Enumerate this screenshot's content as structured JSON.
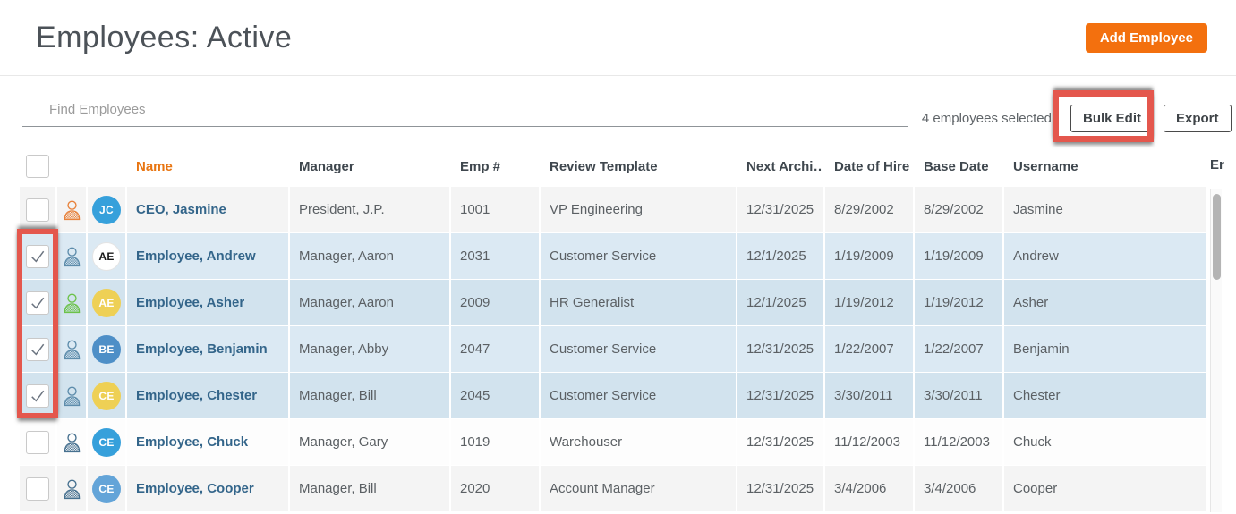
{
  "page": {
    "title": "Employees: Active"
  },
  "header": {
    "add_employee_label": "Add Employee"
  },
  "toolbar": {
    "search_placeholder": "Find Employees",
    "selected_text": "4 employees selected",
    "bulk_edit_label": "Bulk Edit",
    "export_label": "Export"
  },
  "table": {
    "columns": [
      "Name",
      "Manager",
      "Emp #",
      "Review Template",
      "Next Archi…",
      "Date of Hire",
      "Base Date",
      "Username",
      "Er"
    ],
    "sorted_column": "Name",
    "rows": [
      {
        "checked": false,
        "selected": false,
        "person_icon_color": "#e8823c",
        "avatar": {
          "initials": "JC",
          "bg": "#36a0db",
          "fg": "#ffffff"
        },
        "name": "CEO, Jasmine",
        "manager": "President, J.P.",
        "emp_no": "1001",
        "review_template": "VP Engineering",
        "next_archival": "12/31/2025",
        "date_of_hire": "8/29/2002",
        "base_date": "8/29/2002",
        "username": "Jasmine"
      },
      {
        "checked": true,
        "selected": true,
        "person_icon_color": "#5d8cab",
        "avatar": {
          "initials": "AE",
          "bg": "#ffffff",
          "fg": "#1a1a1a"
        },
        "name": "Employee, Andrew",
        "manager": "Manager, Aaron",
        "emp_no": "2031",
        "review_template": "Customer Service",
        "next_archival": "12/1/2025",
        "date_of_hire": "1/19/2009",
        "base_date": "1/19/2009",
        "username": "Andrew"
      },
      {
        "checked": true,
        "selected": true,
        "person_icon_color": "#6cc24a",
        "avatar": {
          "initials": "AE",
          "bg": "#eed055",
          "fg": "#ffffff"
        },
        "name": "Employee, Asher",
        "manager": "Manager, Aaron",
        "emp_no": "2009",
        "review_template": "HR Generalist",
        "next_archival": "12/1/2025",
        "date_of_hire": "1/19/2012",
        "base_date": "1/19/2012",
        "username": "Asher"
      },
      {
        "checked": true,
        "selected": true,
        "person_icon_color": "#5d8cab",
        "avatar": {
          "initials": "BE",
          "bg": "#4e8fc7",
          "fg": "#ffffff"
        },
        "name": "Employee, Benjamin",
        "manager": "Manager, Abby",
        "emp_no": "2047",
        "review_template": "Customer Service",
        "next_archival": "12/31/2025",
        "date_of_hire": "1/22/2007",
        "base_date": "1/22/2007",
        "username": "Benjamin"
      },
      {
        "checked": true,
        "selected": true,
        "person_icon_color": "#5d8cab",
        "avatar": {
          "initials": "CE",
          "bg": "#eed055",
          "fg": "#ffffff"
        },
        "name": "Employee, Chester",
        "manager": "Manager, Bill",
        "emp_no": "2045",
        "review_template": "Customer Service",
        "next_archival": "12/31/2025",
        "date_of_hire": "3/30/2011",
        "base_date": "3/30/2011",
        "username": "Chester"
      },
      {
        "checked": false,
        "selected": false,
        "person_icon_color": "#46708f",
        "avatar": {
          "initials": "CE",
          "bg": "#36a0db",
          "fg": "#ffffff"
        },
        "name": "Employee, Chuck",
        "manager": "Manager, Gary",
        "emp_no": "1019",
        "review_template": "Warehouser",
        "next_archival": "12/31/2025",
        "date_of_hire": "11/12/2003",
        "base_date": "11/12/2003",
        "username": "Chuck"
      },
      {
        "checked": false,
        "selected": false,
        "person_icon_color": "#46708f",
        "avatar": {
          "initials": "CE",
          "bg": "#63a4d8",
          "fg": "#ffffff"
        },
        "name": "Employee, Cooper",
        "manager": "Manager, Bill",
        "emp_no": "2020",
        "review_template": "Account Manager",
        "next_archival": "12/31/2025",
        "date_of_hire": "3/4/2006",
        "base_date": "3/4/2006",
        "username": "Cooper"
      }
    ]
  },
  "annotations": {
    "highlight_color": "#e4574d",
    "boxes": [
      "bulk-edit-button",
      "selected-rows-checkboxes"
    ]
  },
  "colors": {
    "accent_orange": "#f3700e",
    "sorted_header_orange": "#e87511",
    "name_link_blue": "#33658a",
    "selected_row_blue": "#d8e7f1",
    "annotation_red": "#e4574d"
  }
}
